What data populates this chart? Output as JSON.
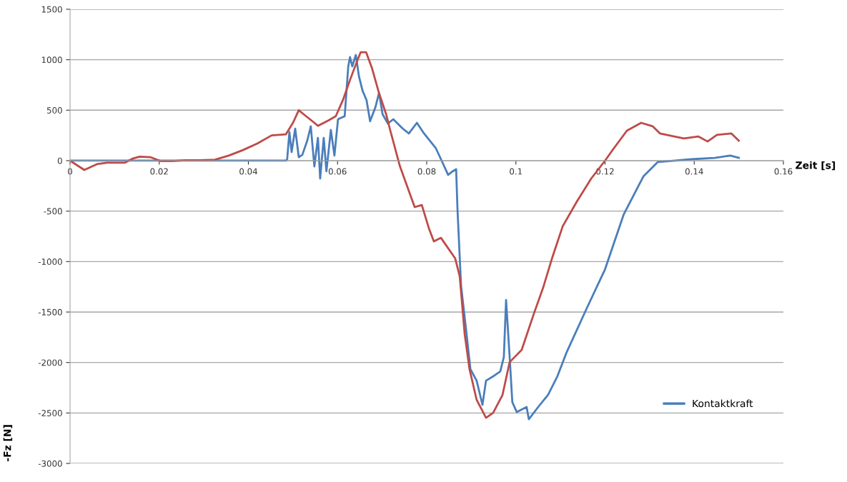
{
  "chart_data": {
    "type": "line",
    "xlabel": "Zeit [s]",
    "ylabel": "-Fz [N]",
    "xlim": [
      0,
      0.16
    ],
    "xticks": [
      0,
      0.02,
      0.04,
      0.06,
      0.08,
      0.1,
      0.12,
      0.14,
      0.16
    ],
    "ylim": [
      -3000,
      1500
    ],
    "yticks": [
      -3000,
      -2500,
      -2000,
      -1500,
      -1000,
      -500,
      0,
      500,
      1000,
      1500
    ],
    "grid": "y",
    "legend": "bottom right",
    "marker": "none",
    "line_style": "solid",
    "series": [
      {
        "name": "Kontaktkraft",
        "color": "#4a7ebb",
        "x": [
          0,
          0.0484,
          0.0487,
          0.0492,
          0.0497,
          0.0505,
          0.0513,
          0.0521,
          0.0532,
          0.054,
          0.0548,
          0.0556,
          0.0561,
          0.0569,
          0.0575,
          0.0585,
          0.0593,
          0.0601,
          0.0616,
          0.0624,
          0.0628,
          0.0633,
          0.0641,
          0.0648,
          0.0656,
          0.0665,
          0.0673,
          0.0685,
          0.0693,
          0.0701,
          0.0713,
          0.0725,
          0.0746,
          0.076,
          0.0778,
          0.0794,
          0.082,
          0.0832,
          0.0848,
          0.0858,
          0.0866,
          0.0869,
          0.0877,
          0.0888,
          0.0898,
          0.0912,
          0.0925,
          0.0933,
          0.0949,
          0.0965,
          0.0973,
          0.0978,
          0.0986,
          0.0992,
          0.1002,
          0.1024,
          0.1029,
          0.105,
          0.1072,
          0.1093,
          0.1114,
          0.1158,
          0.12,
          0.1242,
          0.1286,
          0.1318,
          0.1339,
          0.1393,
          0.1446,
          0.1481,
          0.15
        ],
        "values": [
          0,
          0,
          14,
          283,
          85,
          318,
          35,
          57,
          198,
          340,
          -57,
          226,
          -177,
          226,
          -106,
          304,
          50,
          410,
          440,
          934,
          1026,
          934,
          1047,
          835,
          694,
          600,
          390,
          530,
          672,
          460,
          368,
          410,
          318,
          269,
          375,
          269,
          127,
          14,
          -141,
          -106,
          -85,
          -481,
          -1238,
          -1663,
          -2066,
          -2180,
          -2420,
          -2180,
          -2137,
          -2088,
          -1946,
          -1380,
          -1946,
          -2392,
          -2491,
          -2441,
          -2562,
          -2441,
          -2321,
          -2137,
          -1897,
          -1472,
          -1076,
          -531,
          -156,
          -14,
          -7,
          14,
          28,
          50,
          28
        ]
      },
      {
        "color": "#be4b48",
        "x": [
          0,
          0.0032,
          0.006,
          0.0083,
          0.0123,
          0.014,
          0.0156,
          0.018,
          0.0204,
          0.0228,
          0.026,
          0.029,
          0.0325,
          0.0356,
          0.0388,
          0.042,
          0.0452,
          0.0484,
          0.05,
          0.0513,
          0.0524,
          0.0548,
          0.0556,
          0.058,
          0.0596,
          0.0612,
          0.0628,
          0.0645,
          0.0652,
          0.0664,
          0.0677,
          0.0693,
          0.0709,
          0.0717,
          0.074,
          0.0773,
          0.0789,
          0.0805,
          0.0816,
          0.0832,
          0.0864,
          0.0874,
          0.0885,
          0.0896,
          0.0912,
          0.0933,
          0.0949,
          0.097,
          0.0986,
          0.1013,
          0.104,
          0.1061,
          0.1082,
          0.1105,
          0.1137,
          0.1169,
          0.12,
          0.1217,
          0.1249,
          0.1281,
          0.1307,
          0.1323,
          0.1361,
          0.1377,
          0.1409,
          0.143,
          0.1451,
          0.1483,
          0.15
        ],
        "values": [
          0,
          -92,
          -35,
          -20,
          -20,
          20,
          40,
          35,
          -5,
          -5,
          5,
          5,
          10,
          50,
          105,
          170,
          250,
          260,
          375,
          500,
          460,
          375,
          345,
          400,
          440,
          600,
          800,
          1000,
          1075,
          1075,
          920,
          670,
          460,
          320,
          -57,
          -460,
          -440,
          -672,
          -800,
          -765,
          -970,
          -1146,
          -1712,
          -2066,
          -2370,
          -2548,
          -2498,
          -2321,
          -1996,
          -1875,
          -1520,
          -1260,
          -955,
          -650,
          -403,
          -177,
          0,
          106,
          297,
          375,
          340,
          270,
          234,
          220,
          240,
          190,
          255,
          270,
          198
        ]
      }
    ]
  }
}
